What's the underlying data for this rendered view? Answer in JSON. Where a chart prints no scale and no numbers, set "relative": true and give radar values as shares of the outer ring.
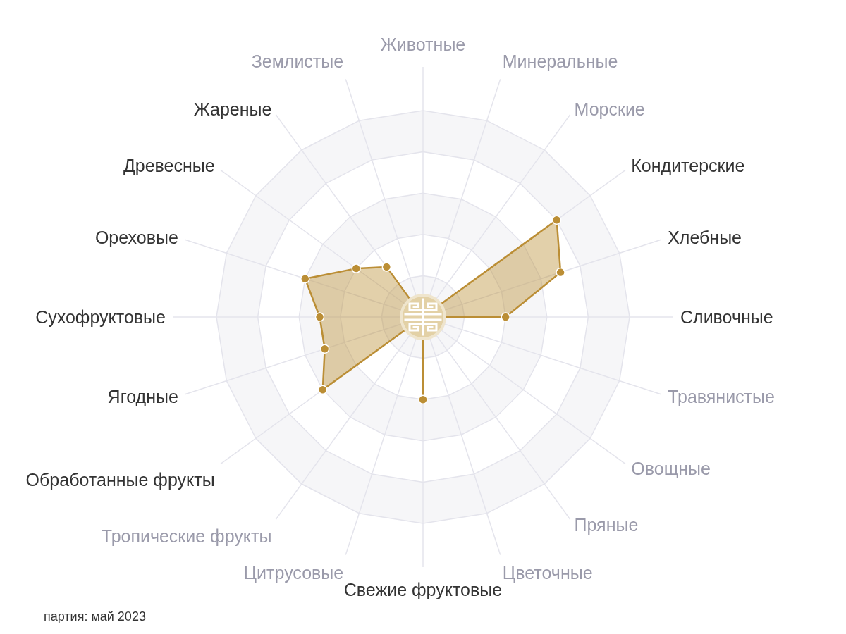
{
  "chart_data": {
    "type": "radar",
    "categories": [
      "Животные",
      "Минеральные",
      "Морские",
      "Кондитерские",
      "Хлебные",
      "Сливочные",
      "Травянистые",
      "Овощные",
      "Пряные",
      "Цветочные",
      "Свежие фруктовые",
      "Цитрусовые",
      "Тропические фрукты",
      "Обработанные фрукты",
      "Ягодные",
      "Сухофруктовые",
      "Ореховые",
      "Древесные",
      "Жареные",
      "Землистые"
    ],
    "series": [
      {
        "color": "#bb8e35",
        "values": [
          0,
          0,
          0,
          0.8,
          0.7,
          0.4,
          0,
          0,
          0,
          0,
          0.4,
          0,
          0,
          0.6,
          0.5,
          0.5,
          0.6,
          0.4,
          0.3,
          0
        ]
      }
    ],
    "relative": true,
    "grid": true,
    "marker": "circle",
    "annotations": [
      "партия: май 2023"
    ]
  }
}
